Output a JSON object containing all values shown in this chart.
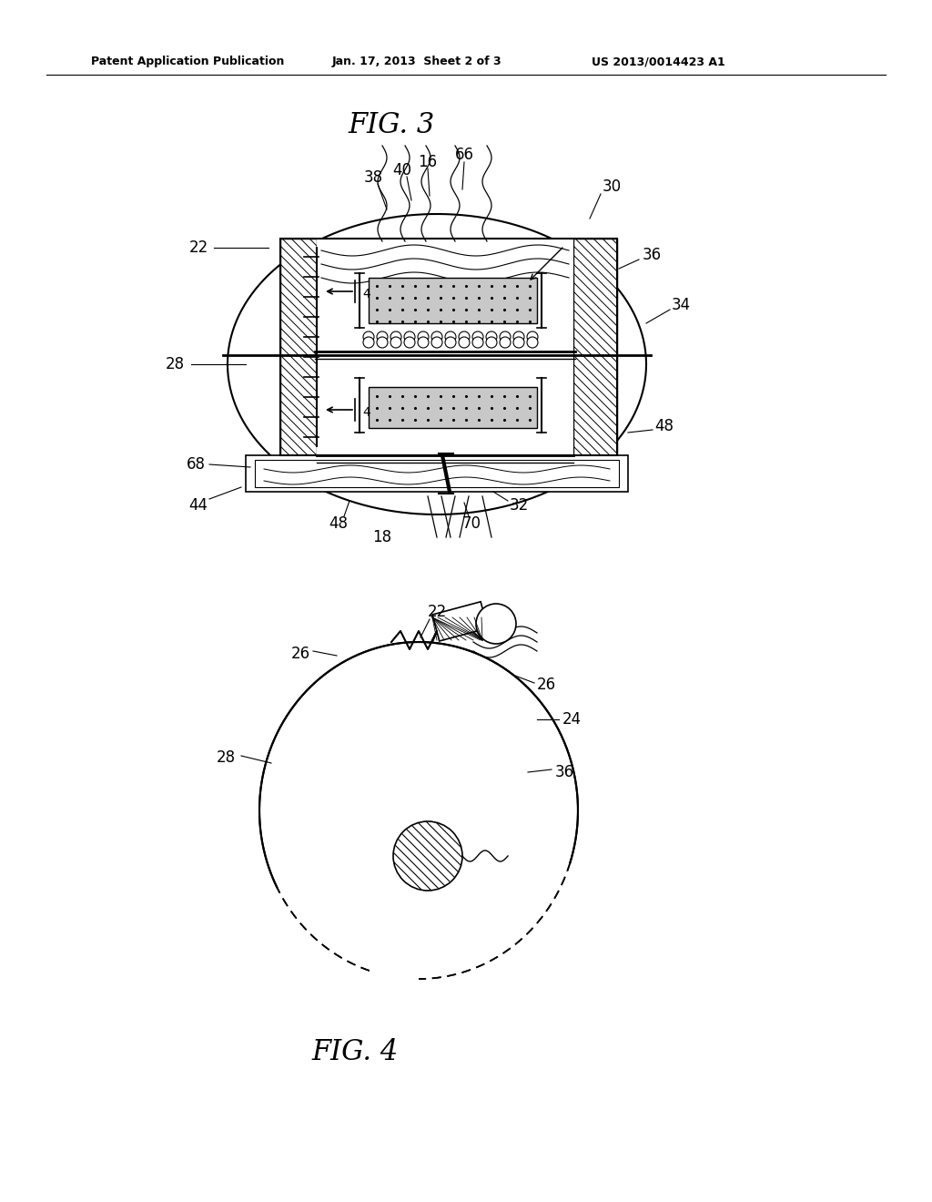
{
  "bg_color": "#ffffff",
  "black": "#000000",
  "gray_coil": "#c8c8c8",
  "fig3_title": "FIG. 3",
  "fig4_title": "FIG. 4",
  "header_left": "Patent Application Publication",
  "header_mid": "Jan. 17, 2013  Sheet 2 of 3",
  "header_right": "US 2013/0014423 A1"
}
